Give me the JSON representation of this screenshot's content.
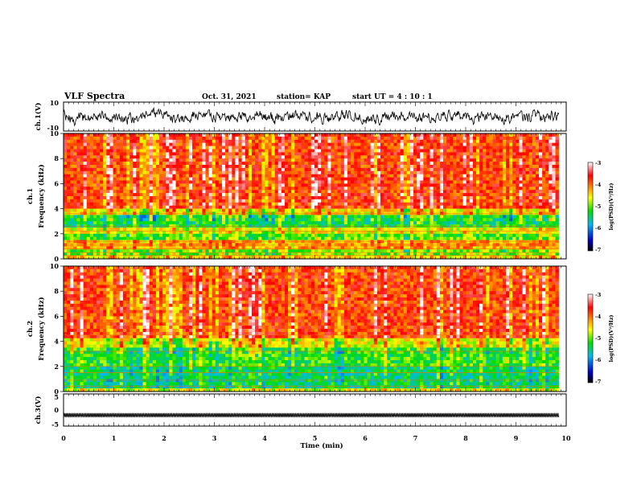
{
  "header": {
    "title": "VLF Spectra",
    "date": "Oct. 31, 2021",
    "station": "station= KAP",
    "start": "start  UT =  4 : 10 : 1"
  },
  "chart_data": [
    {
      "type": "line",
      "name": "ch1-waveform",
      "ylabel": "ch.1(V)",
      "xlim": [
        0,
        10
      ],
      "ylim": [
        -10,
        10
      ],
      "yticks": [
        "10",
        "-10"
      ],
      "xticks": []
    },
    {
      "type": "heatmap",
      "name": "ch1-spectrogram",
      "ylabel": "ch.1\nFrequency  (kHz)",
      "xlim": [
        0,
        10
      ],
      "ylim": [
        0,
        10
      ],
      "data_end_min": 9.85,
      "yticks": [
        "0",
        "2",
        "4",
        "6",
        "8",
        "10"
      ],
      "colorbar": {
        "label": "log(PSD)(V²/Hz)",
        "range": [
          -7,
          -3
        ],
        "ticks": [
          "-3",
          "-4",
          "-5",
          "-6",
          "-7"
        ]
      }
    },
    {
      "type": "heatmap",
      "name": "ch2-spectrogram",
      "ylabel": "ch.2\nFrequency  (kHz)",
      "xlim": [
        0,
        10
      ],
      "ylim": [
        0,
        10
      ],
      "data_end_min": 9.85,
      "yticks": [
        "0",
        "2",
        "4",
        "6",
        "8",
        "10"
      ],
      "colorbar": {
        "label": "log(PSD)(V²/Hz)",
        "range": [
          -7,
          -3
        ],
        "ticks": [
          "-3",
          "-4",
          "-5",
          "-6",
          "-7"
        ]
      }
    },
    {
      "type": "line",
      "name": "ch3-waveform",
      "ylabel": "ch.3(V)",
      "xlim": [
        0,
        10
      ],
      "ylim": [
        -5,
        5
      ],
      "yticks": [
        "5",
        "0",
        "-5"
      ],
      "xlabel": "Time  (min)",
      "xticks": [
        "0",
        "1",
        "2",
        "3",
        "4",
        "5",
        "6",
        "7",
        "8",
        "9",
        "10"
      ]
    }
  ],
  "colors": {
    "trace": "#000000",
    "colormap": [
      "#000000",
      "#0000cc",
      "#00bbee",
      "#00dd00",
      "#ffff00",
      "#ff8800",
      "#ff0000",
      "#ffffff"
    ]
  }
}
